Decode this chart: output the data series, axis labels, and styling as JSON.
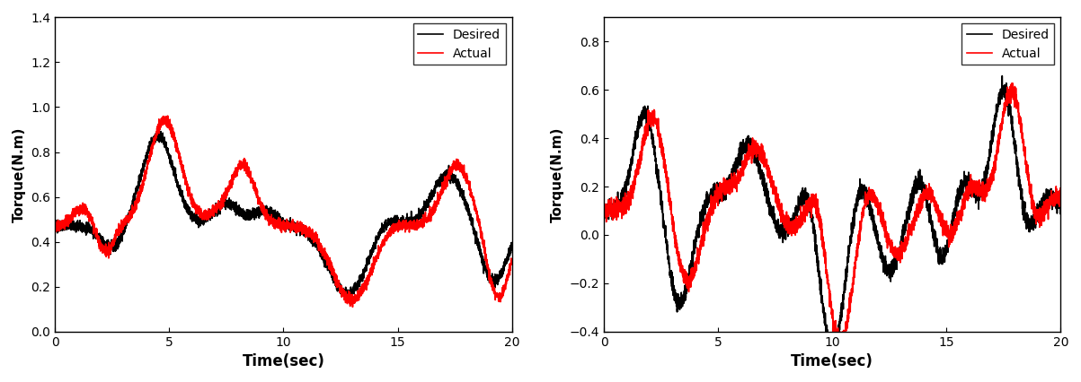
{
  "xlabel": "Time(sec)",
  "ylabel": "Torque(N.m)",
  "xlim": [
    0,
    20
  ],
  "ylim1": [
    0.0,
    1.4
  ],
  "ylim2": [
    -0.4,
    0.9
  ],
  "yticks1": [
    0.0,
    0.2,
    0.4,
    0.6,
    0.8,
    1.0,
    1.2,
    1.4
  ],
  "yticks2": [
    -0.4,
    -0.2,
    0.0,
    0.2,
    0.4,
    0.6,
    0.8
  ],
  "xticks": [
    0,
    5,
    10,
    15,
    20
  ],
  "desired_color": "#000000",
  "actual_color": "#ff0000",
  "legend_entries": [
    "Desired",
    "Actual"
  ],
  "background_color": "#ffffff",
  "linewidth": 1.2
}
